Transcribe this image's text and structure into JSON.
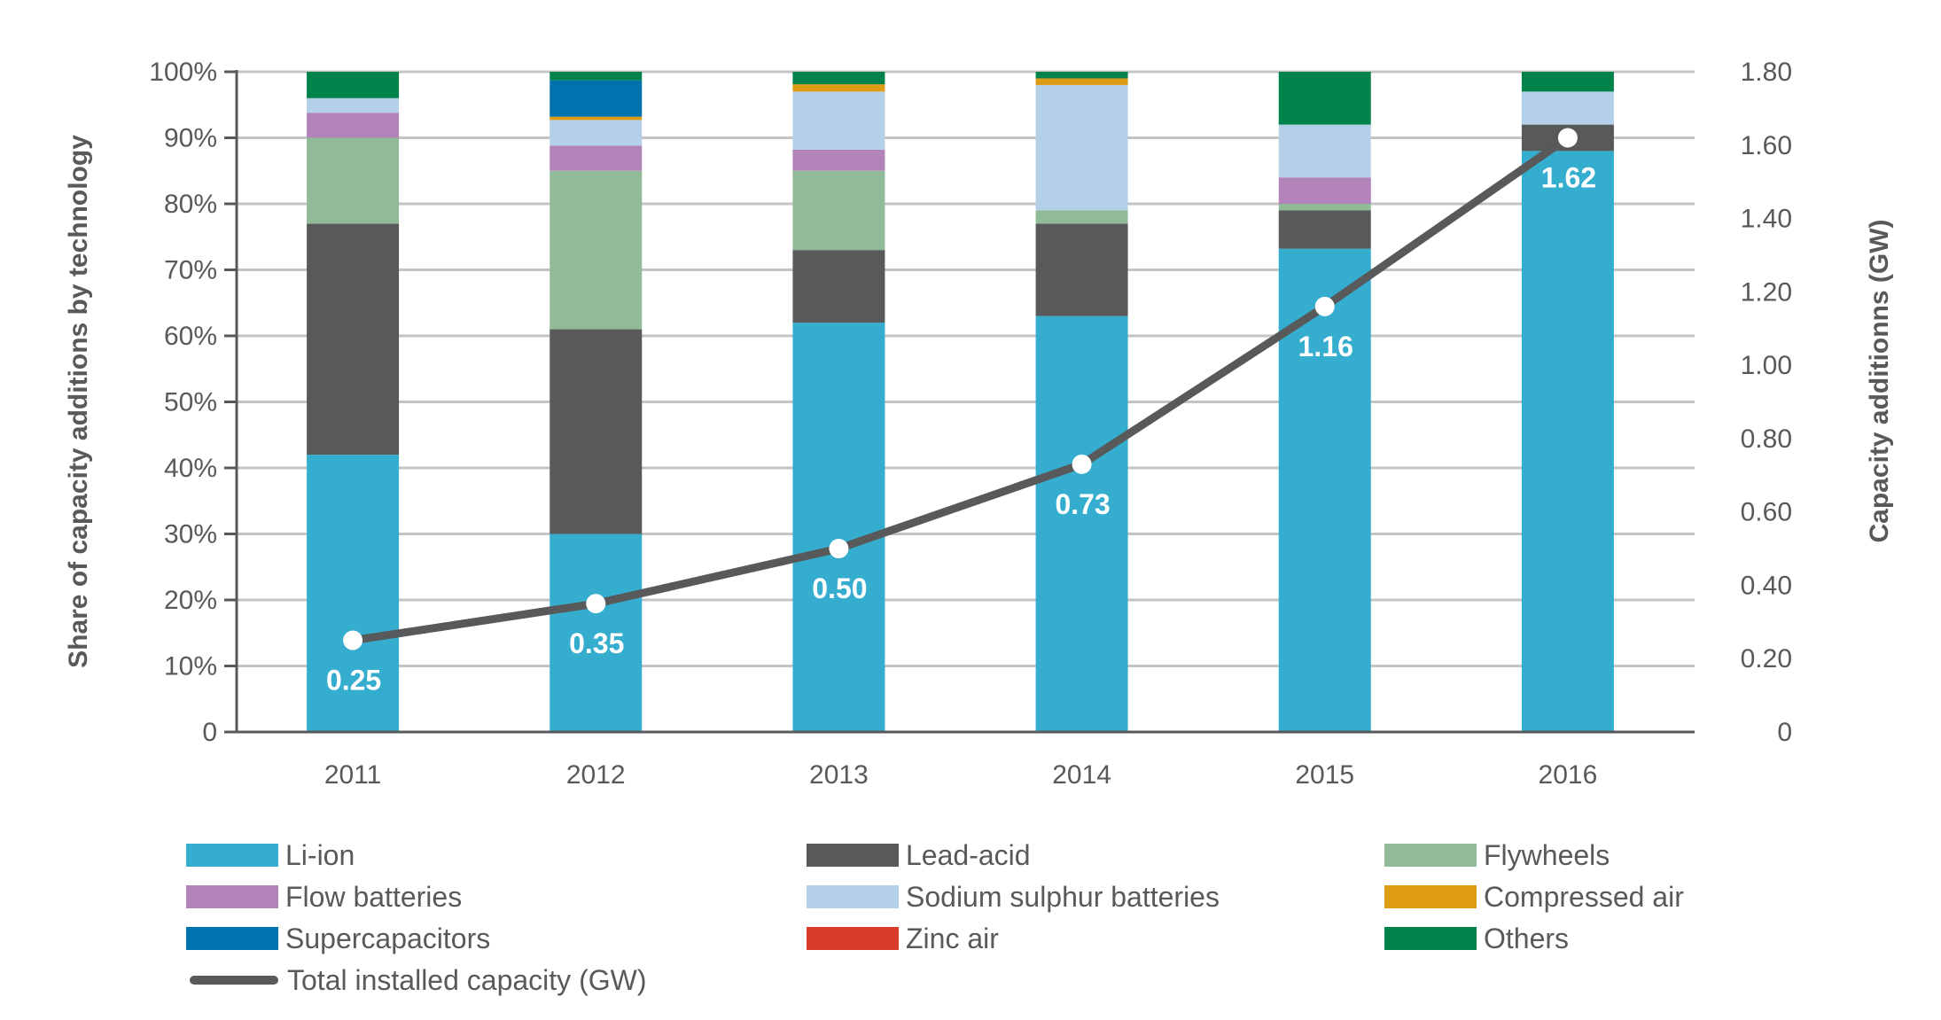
{
  "chart_data": {
    "type": "bar",
    "subtype": "stacked-percent-with-line",
    "title": "",
    "categories": [
      "2011",
      "2012",
      "2013",
      "2014",
      "2015",
      "2016"
    ],
    "ylabel": "Share of capacity additions by technology",
    "y2label": "Capacity additionns (GW)",
    "xlabel": "",
    "ylim": [
      0,
      100
    ],
    "y2lim": [
      0,
      1.8
    ],
    "yticks": [
      "0",
      "10%",
      "20%",
      "30%",
      "40%",
      "50%",
      "60%",
      "70%",
      "80%",
      "90%",
      "100%"
    ],
    "y2ticks": [
      "0",
      "0.20",
      "0.40",
      "0.60",
      "0.80",
      "1.00",
      "1.20",
      "1.40",
      "1.60",
      "1.80"
    ],
    "grid": true,
    "legend_position": "bottom",
    "series": [
      {
        "name": "Li-ion",
        "color": "#35adcf",
        "values": [
          42,
          30,
          62,
          63,
          73.2,
          88
        ]
      },
      {
        "name": "Lead-acid",
        "color": "#58595b",
        "values": [
          35,
          31,
          11,
          14,
          5.8,
          4
        ]
      },
      {
        "name": "Flywheels",
        "color": "#91bb98",
        "values": [
          13,
          24,
          12,
          2,
          1,
          0
        ]
      },
      {
        "name": "Flow batteries",
        "color": "#b283b8",
        "values": [
          3.8,
          3.8,
          3.2,
          0,
          4,
          0
        ]
      },
      {
        "name": "Sodium sulphur batteries",
        "color": "#b3d0e8",
        "values": [
          2.2,
          3.9,
          8.8,
          19,
          8,
          5
        ]
      },
      {
        "name": "Compressed air",
        "color": "#de9b14",
        "values": [
          0,
          0.5,
          1.1,
          1,
          0,
          0
        ]
      },
      {
        "name": "Supercapacitors",
        "color": "#0072ad",
        "values": [
          0,
          5.5,
          0,
          0,
          0,
          0
        ]
      },
      {
        "name": "Zinc air",
        "color": "#d63c29",
        "values": [
          0,
          0,
          0,
          0,
          0,
          0
        ]
      },
      {
        "name": "Others",
        "color": "#00834a",
        "values": [
          4,
          1.3,
          1.9,
          1,
          8,
          3
        ]
      }
    ],
    "line": {
      "name": "Total installed capacity (GW)",
      "color": "#58595b",
      "axis": "right",
      "values": [
        0.25,
        0.35,
        0.5,
        0.73,
        1.16,
        1.62
      ],
      "labels": [
        "0.25",
        "0.35",
        "0.50",
        "0.73",
        "1.16",
        "1.62"
      ]
    }
  },
  "legend": {
    "items": [
      {
        "label": "Li-ion",
        "color": "#35adcf",
        "kind": "swatch"
      },
      {
        "label": "Lead-acid",
        "color": "#58595b",
        "kind": "swatch"
      },
      {
        "label": "Flywheels",
        "color": "#91bb98",
        "kind": "swatch"
      },
      {
        "label": "Flow batteries",
        "color": "#b283b8",
        "kind": "swatch"
      },
      {
        "label": "Sodium sulphur batteries",
        "color": "#b3d0e8",
        "kind": "swatch"
      },
      {
        "label": "Compressed air",
        "color": "#de9b14",
        "kind": "swatch"
      },
      {
        "label": "Supercapacitors",
        "color": "#0072ad",
        "kind": "swatch"
      },
      {
        "label": "Zinc air",
        "color": "#d63c29",
        "kind": "swatch"
      },
      {
        "label": "Others",
        "color": "#00834a",
        "kind": "swatch"
      },
      {
        "label": "Total installed capacity (GW)",
        "color": "#58595b",
        "kind": "line"
      }
    ]
  },
  "colors": {
    "gridline": "#c4c4c4",
    "axis": "#58595b",
    "text": "#58595b"
  }
}
